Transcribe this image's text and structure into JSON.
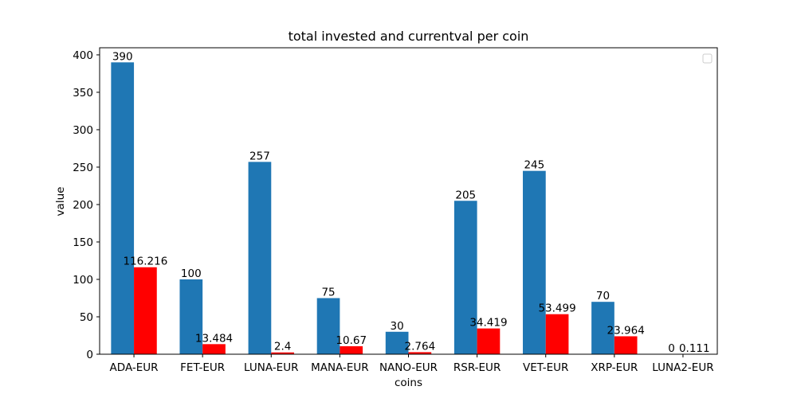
{
  "chart_data": {
    "type": "bar",
    "title": "total invested and currentval per coin",
    "xlabel": "coins",
    "ylabel": "value",
    "ylim": [
      0,
      409.5
    ],
    "yticks": [
      0,
      50,
      100,
      150,
      200,
      250,
      300,
      350,
      400
    ],
    "grid": false,
    "legend": "top-right (empty)",
    "categories": [
      "ADA-EUR",
      "FET-EUR",
      "LUNA-EUR",
      "MANA-EUR",
      "NANO-EUR",
      "RSR-EUR",
      "VET-EUR",
      "XRP-EUR",
      "LUNA2-EUR"
    ],
    "series": [
      {
        "color": "#1f77b4",
        "values": [
          390,
          100,
          257,
          75,
          30,
          205,
          245,
          70,
          0
        ],
        "labels": [
          "390",
          "100",
          "257",
          "75",
          "30",
          "205",
          "245",
          "70",
          "0"
        ]
      },
      {
        "color": "#ff0000",
        "values": [
          116.216,
          13.484,
          2.4,
          10.67,
          2.764,
          34.419,
          53.499,
          23.964,
          0.111
        ],
        "labels": [
          "116.216",
          "13.484",
          "2.4",
          "10.67",
          "2.764",
          "34.419",
          "53.499",
          "23.964",
          "0.111"
        ]
      }
    ]
  }
}
